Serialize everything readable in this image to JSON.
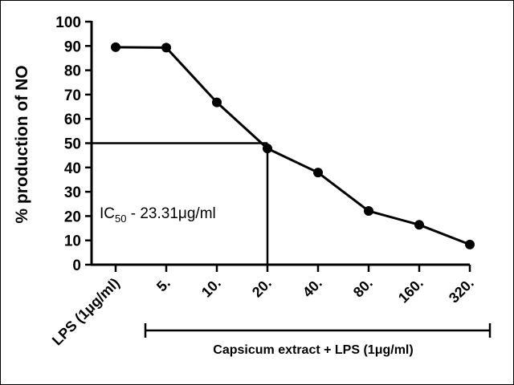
{
  "chart_data": {
    "type": "line",
    "categories": [
      "LPS (1μg/ml)",
      "5.",
      "10.",
      "20.",
      "40.",
      "80.",
      "160.",
      "320."
    ],
    "series": [
      {
        "values": [
          89.5,
          89.3,
          66.8,
          47.8,
          37.9,
          22.1,
          16.4,
          8.3
        ]
      }
    ],
    "title": "",
    "xlabel": "",
    "ylabel": "% production of NO",
    "ylim": [
      0,
      100
    ],
    "yticks": [
      0,
      10,
      20,
      30,
      40,
      50,
      60,
      70,
      80,
      90,
      100
    ],
    "grid": false,
    "bracket_label": "Capsicum extract + LPS (1μg/ml)",
    "annotation": {
      "prefix": "IC",
      "subscript": "50",
      "suffix": " - 23.31μg/ml"
    },
    "ic50_guide": {
      "y": 50,
      "category": "20."
    },
    "colors": {
      "line": "#000000",
      "marker": "#000000"
    }
  }
}
